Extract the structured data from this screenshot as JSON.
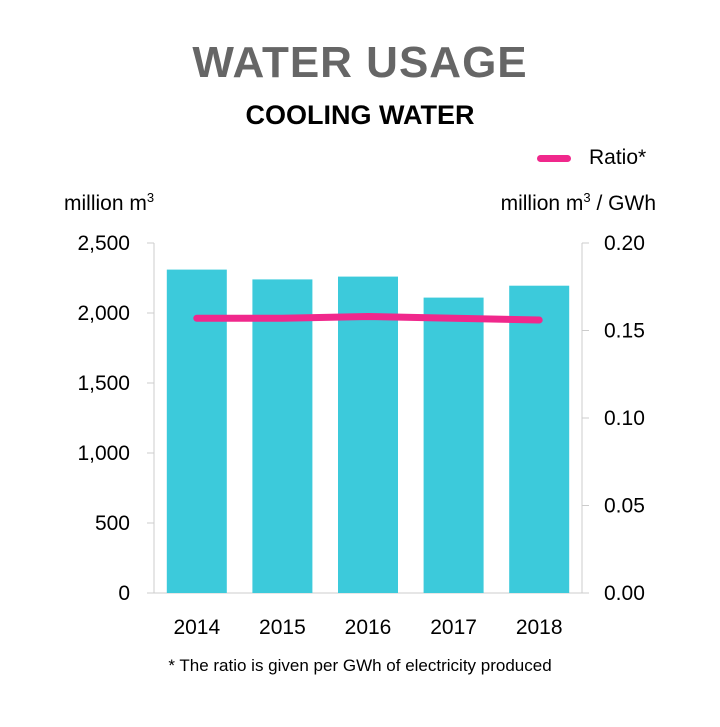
{
  "chart_data": {
    "type": "bar",
    "title": "WATER USAGE",
    "subtitle": "COOLING WATER",
    "categories": [
      "2014",
      "2015",
      "2016",
      "2017",
      "2018"
    ],
    "series": [
      {
        "name": "",
        "type": "bar",
        "axis": "left",
        "values": [
          2310,
          2240,
          2260,
          2110,
          2195
        ]
      },
      {
        "name": "Ratio*",
        "type": "line",
        "axis": "right",
        "values": [
          0.157,
          0.157,
          0.158,
          0.157,
          0.156
        ]
      }
    ],
    "ylabel_left": "million m",
    "ylabel_left_sup": "3",
    "ylabel_right": "million m",
    "ylabel_right_sup": "3",
    "ylabel_right_suffix": " / GWh",
    "ylim_left": [
      0,
      2500
    ],
    "ylim_right": [
      0,
      0.2
    ],
    "yticks_left": [
      "0",
      "500",
      "1,000",
      "1,500",
      "2,000",
      "2,500"
    ],
    "yticks_right": [
      "0.00",
      "0.05",
      "0.10",
      "0.15",
      "0.20"
    ],
    "grid": false,
    "legend_position": "top-right",
    "footnote": "* The ratio is given per GWh of electricity produced",
    "colors": {
      "bar": "#3ccadb",
      "line": "#f0288c",
      "axis": "#cccccc",
      "title": "#666666"
    }
  }
}
